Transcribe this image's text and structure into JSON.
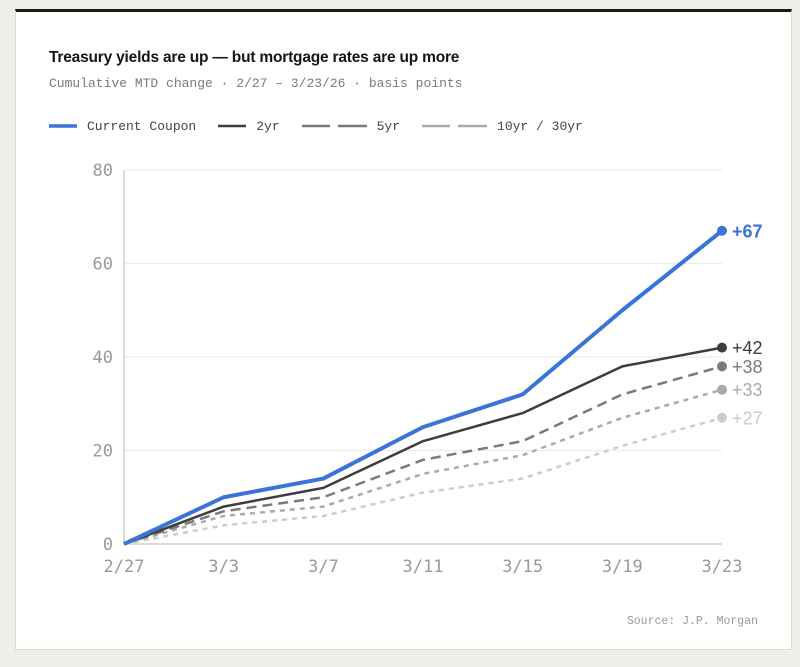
{
  "header": {
    "title": "Treasury yields are up — but mortgage rates are up more",
    "subtitle": "Cumulative MTD change · 2/27 – 3/23/26 · basis points"
  },
  "legend": [
    {
      "label": "Current Coupon",
      "color": "#3b73d9",
      "style": "solid-thick"
    },
    {
      "label": "2yr",
      "color": "#3d3d3d",
      "style": "solid"
    },
    {
      "label": "5yr",
      "color": "#7a7a7a",
      "style": "dashed"
    },
    {
      "label": "10yr / 30yr",
      "color": "#aaaaaa",
      "style": "dashed"
    }
  ],
  "footer": {
    "source": "Source: J.P. Morgan"
  },
  "chart_data": {
    "type": "line",
    "title": "Treasury yields are up — but mortgage rates are up more",
    "subtitle": "Cumulative MTD change · 2/27 – 3/23/26 · basis points",
    "xlabel": "",
    "ylabel": "basis points",
    "categories": [
      "2/27",
      "3/3",
      "3/7",
      "3/11",
      "3/15",
      "3/19",
      "3/23"
    ],
    "yticks": [
      0,
      20,
      40,
      60,
      80
    ],
    "ylim": [
      0,
      80
    ],
    "grid": true,
    "legend_position": "top",
    "series": [
      {
        "name": "Current Coupon",
        "values": [
          0,
          10,
          14,
          25,
          32,
          50,
          67
        ],
        "color": "#3b73d9",
        "width": 4,
        "dash": "",
        "end_label": "+67",
        "end_label_bold": true,
        "label_color": "#3b73d9"
      },
      {
        "name": "2yr",
        "values": [
          0,
          8,
          12,
          22,
          28,
          38,
          42
        ],
        "color": "#3d3d3d",
        "width": 2.5,
        "dash": "",
        "end_label": "+42",
        "end_label_bold": false,
        "label_color": "#3d3d3d"
      },
      {
        "name": "5yr",
        "values": [
          0,
          7,
          10,
          18,
          22,
          32,
          38
        ],
        "color": "#7a7a7a",
        "width": 2.5,
        "dash": "10,6",
        "end_label": "+38",
        "end_label_bold": false,
        "label_color": "#7a7a7a"
      },
      {
        "name": "10yr",
        "values": [
          0,
          6,
          8,
          15,
          19,
          27,
          33
        ],
        "color": "#aaaaaa",
        "width": 2.5,
        "dash": "5,5",
        "end_label": "+33",
        "end_label_bold": false,
        "label_color": "#aaaaaa"
      },
      {
        "name": "30yr",
        "values": [
          0,
          4,
          6,
          11,
          14,
          21,
          27
        ],
        "color": "#cccccc",
        "width": 2.5,
        "dash": "5,5",
        "end_label": "+27",
        "end_label_bold": false,
        "label_color": "#cccccc"
      }
    ]
  }
}
